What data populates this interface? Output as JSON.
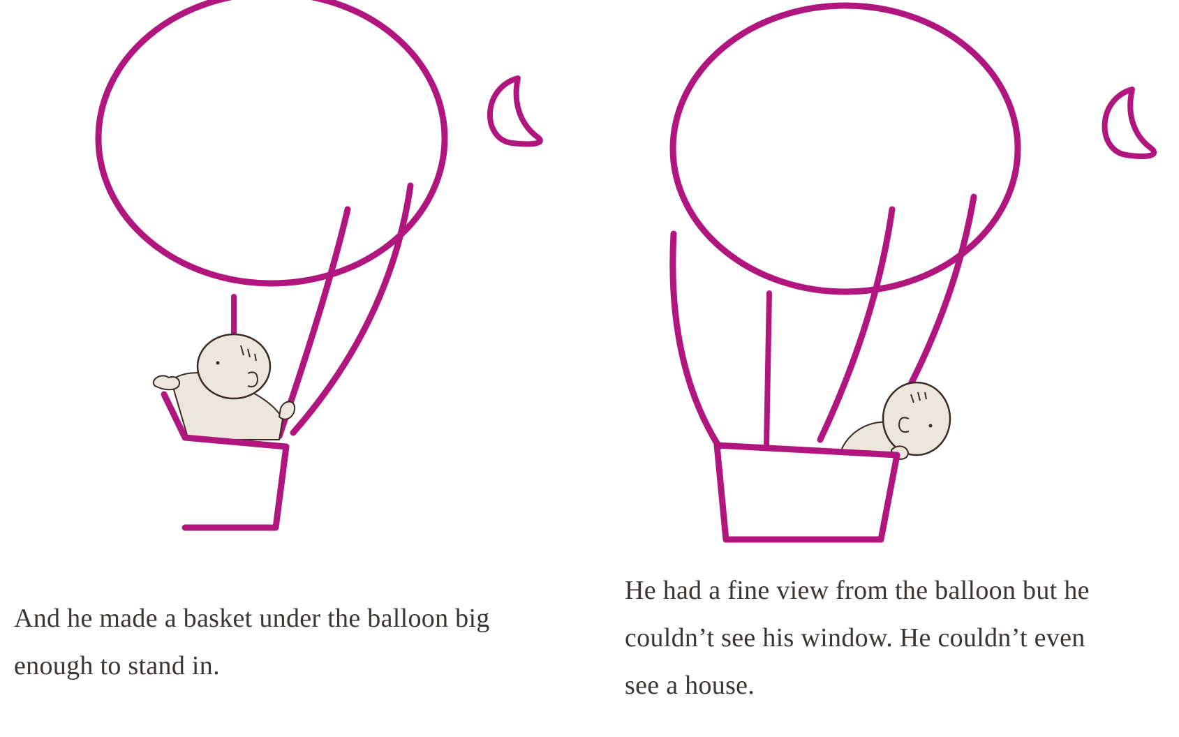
{
  "colors": {
    "balloon_line": "#b1167e",
    "moon_line": "#b1167e",
    "skin_fill": "#ece6dc",
    "skin_shadow": "#d9d1c4",
    "outline": "#3a2a22",
    "text": "#3a3532"
  },
  "left_page": {
    "caption_line_1": "And he made a basket under the balloon big",
    "caption_line_2": "enough to stand in."
  },
  "right_page": {
    "caption_line_1": "He had a fine view from the balloon but he",
    "caption_line_2": "couldn’t see his window. He couldn’t even",
    "caption_line_3": "see a house."
  }
}
